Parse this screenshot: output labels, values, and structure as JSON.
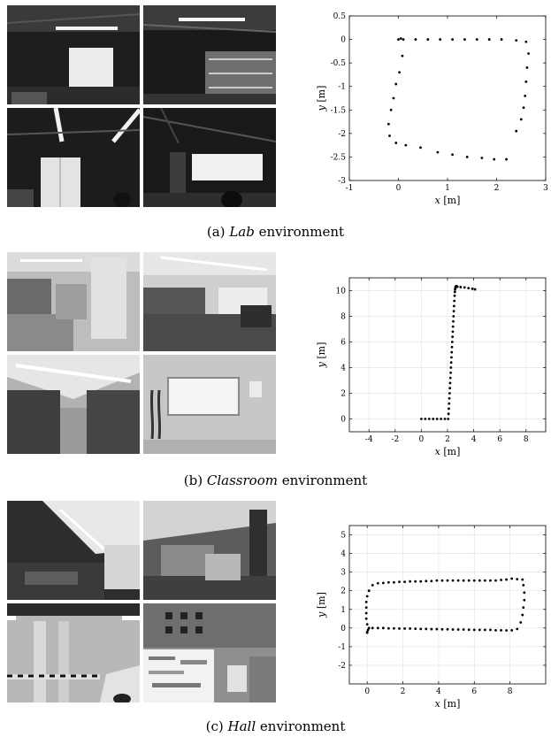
{
  "figures": [
    {
      "id": "lab",
      "caption": {
        "prefix": "(a)",
        "name": "Lab",
        "suffix": "environment"
      },
      "xlabel": {
        "var": "x",
        "unit": "[m]"
      },
      "ylabel": {
        "var": "y",
        "unit": "[m]"
      }
    },
    {
      "id": "classroom",
      "caption": {
        "prefix": "(b)",
        "name": "Classroom",
        "suffix": "environment"
      },
      "xlabel": {
        "var": "x",
        "unit": "[m]"
      },
      "ylabel": {
        "var": "y",
        "unit": "[m]"
      }
    },
    {
      "id": "hall",
      "caption": {
        "prefix": "(c)",
        "name": "Hall",
        "suffix": "environment"
      },
      "xlabel": {
        "var": "x",
        "unit": "[m]"
      },
      "ylabel": {
        "var": "y",
        "unit": "[m]"
      }
    }
  ],
  "chart_data": [
    {
      "type": "scatter",
      "title": "",
      "xlabel": "x [m]",
      "ylabel": "y [m]",
      "xlim": [
        -1,
        3
      ],
      "ylim": [
        -3,
        0.5
      ],
      "xticks": [
        -1,
        0,
        1,
        2,
        3
      ],
      "yticks": [
        -3,
        -2.5,
        -2,
        -1.5,
        -1,
        -0.5,
        0,
        0.5
      ],
      "grid": false,
      "series": [
        {
          "x": [
            0,
            0.05,
            0.1,
            0.35,
            0.6,
            0.85,
            1.1,
            1.35,
            1.6,
            1.85,
            2.1,
            2.4,
            2.6,
            2.65,
            2.62,
            2.6,
            2.58,
            2.55,
            2.5,
            2.4,
            2.2,
            1.95,
            1.7,
            1.4,
            1.1,
            0.8,
            0.45,
            0.15,
            -0.05,
            -0.18,
            -0.2,
            -0.15,
            -0.1,
            -0.05,
            0.02,
            0.08
          ],
          "y": [
            0,
            0.02,
            0.0,
            0.0,
            0.0,
            0.0,
            0.0,
            0.0,
            0.0,
            0.0,
            0.0,
            -0.02,
            -0.05,
            -0.3,
            -0.6,
            -0.9,
            -1.2,
            -1.45,
            -1.7,
            -1.95,
            -2.55,
            -2.55,
            -2.52,
            -2.5,
            -2.45,
            -2.4,
            -2.3,
            -2.25,
            -2.2,
            -2.05,
            -1.8,
            -1.5,
            -1.25,
            -0.95,
            -0.7,
            -0.35
          ]
        }
      ]
    },
    {
      "type": "scatter",
      "title": "",
      "xlabel": "x [m]",
      "ylabel": "y [m]",
      "xlim": [
        -5.5,
        9.5
      ],
      "ylim": [
        -1,
        11
      ],
      "xticks": [
        -4,
        -2,
        0,
        2,
        4,
        6,
        8
      ],
      "yticks": [
        0,
        2,
        4,
        6,
        8,
        10
      ],
      "grid": true,
      "series": [
        {
          "x": [
            0,
            0.3,
            0.6,
            0.9,
            1.2,
            1.5,
            1.8,
            2.05,
            2.08,
            2.1,
            2.12,
            2.14,
            2.16,
            2.18,
            2.2,
            2.22,
            2.24,
            2.26,
            2.28,
            2.3,
            2.32,
            2.34,
            2.36,
            2.38,
            2.4,
            2.42,
            2.44,
            2.46,
            2.48,
            2.5,
            2.52,
            2.54,
            2.56,
            2.58,
            2.6,
            2.62,
            2.64,
            2.66,
            2.7,
            2.75,
            3.0,
            3.3,
            3.6,
            3.9,
            4.1
          ],
          "y": [
            0,
            0,
            0,
            0,
            0,
            0,
            0,
            0,
            0.4,
            0.8,
            1.2,
            1.6,
            2.0,
            2.4,
            2.8,
            3.2,
            3.6,
            4.0,
            4.4,
            4.8,
            5.2,
            5.6,
            6.0,
            6.4,
            6.8,
            7.2,
            7.6,
            8.0,
            8.4,
            8.8,
            9.2,
            9.6,
            9.9,
            10.1,
            10.2,
            10.3,
            10.32,
            10.35,
            10.35,
            10.3,
            10.28,
            10.25,
            10.2,
            10.15,
            10.1
          ]
        }
      ]
    },
    {
      "type": "scatter",
      "title": "",
      "xlabel": "x [m]",
      "ylabel": "y [m]",
      "xlim": [
        -1,
        10
      ],
      "ylim": [
        -3,
        5.5
      ],
      "xticks": [
        0,
        2,
        4,
        6,
        8
      ],
      "yticks": [
        -2,
        -1,
        0,
        1,
        2,
        3,
        4,
        5
      ],
      "grid": true,
      "series": [
        {
          "x": [
            0,
            0.05,
            0.1,
            0.3,
            0.6,
            0.9,
            1.2,
            1.5,
            1.8,
            2.1,
            2.4,
            2.7,
            3.0,
            3.3,
            3.6,
            3.9,
            4.2,
            4.5,
            4.8,
            5.1,
            5.4,
            5.7,
            6.0,
            6.3,
            6.6,
            6.9,
            7.2,
            7.5,
            7.8,
            8.1,
            8.4,
            8.6,
            8.7,
            8.75,
            8.8,
            8.8,
            8.75,
            8.7,
            8.4,
            8.1,
            7.8,
            7.5,
            7.2,
            6.9,
            6.6,
            6.3,
            6.0,
            5.7,
            5.4,
            5.1,
            4.8,
            4.5,
            4.2,
            3.9,
            3.6,
            3.3,
            3.0,
            2.7,
            2.4,
            2.1,
            1.8,
            1.5,
            1.2,
            0.9,
            0.6,
            0.3,
            0.1,
            0.0,
            -0.05,
            -0.05,
            -0.05,
            -0.05,
            0.0,
            0.0
          ],
          "y": [
            -0.25,
            -0.1,
            0.0,
            0.0,
            0.0,
            0.0,
            -0.02,
            -0.02,
            -0.03,
            -0.03,
            -0.03,
            -0.04,
            -0.05,
            -0.05,
            -0.06,
            -0.06,
            -0.07,
            -0.07,
            -0.08,
            -0.08,
            -0.08,
            -0.09,
            -0.1,
            -0.1,
            -0.1,
            -0.1,
            -0.12,
            -0.12,
            -0.13,
            -0.12,
            -0.05,
            0.3,
            0.7,
            1.1,
            1.5,
            1.9,
            2.3,
            2.6,
            2.62,
            2.65,
            2.6,
            2.58,
            2.55,
            2.55,
            2.55,
            2.55,
            2.55,
            2.55,
            2.55,
            2.55,
            2.55,
            2.55,
            2.55,
            2.55,
            2.52,
            2.52,
            2.5,
            2.5,
            2.5,
            2.48,
            2.48,
            2.45,
            2.45,
            2.42,
            2.4,
            2.3,
            2.0,
            1.7,
            1.4,
            1.1,
            0.8,
            0.5,
            0.2,
            -0.2
          ]
        }
      ]
    }
  ]
}
